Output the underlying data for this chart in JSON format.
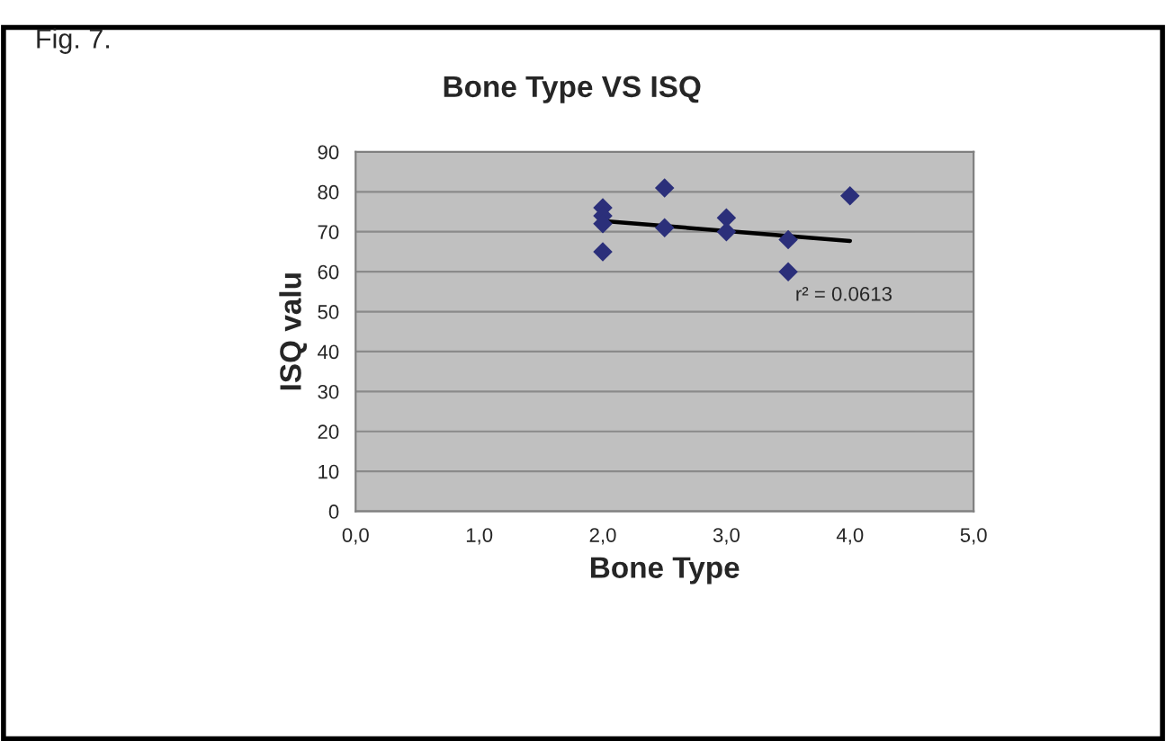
{
  "chart_data": {
    "type": "scatter",
    "title": "Bone Type VS ISQ",
    "xlabel": "Bone Type",
    "ylabel": "ISQ valu",
    "series": [
      {
        "color": "#2b2f7a",
        "marker": "diamond",
        "x": [
          2.0,
          2.0,
          2.0,
          2.0,
          2.5,
          2.5,
          3.0,
          3.0,
          3.5,
          3.5,
          4.0
        ],
        "values": [
          76,
          74,
          72,
          65,
          81,
          71,
          73.5,
          70,
          68,
          60,
          79
        ]
      },
      {
        "type": "line",
        "color": "#000000",
        "marker": "none",
        "x": [
          2.0,
          4.0
        ],
        "values": [
          72.7,
          67.7
        ]
      }
    ],
    "annotations": [
      "Fig. 7.",
      "r² = 0.0613"
    ],
    "xlim": [
      0,
      5
    ],
    "xticks": [
      {
        "value": 0,
        "label": "0,0"
      },
      {
        "value": 1,
        "label": "1,0"
      },
      {
        "value": 2,
        "label": "2,0"
      },
      {
        "value": 3,
        "label": "3,0"
      },
      {
        "value": 4,
        "label": "4,0"
      },
      {
        "value": 5,
        "label": "5,0"
      }
    ],
    "ylim": [
      0,
      90
    ],
    "yticks": [
      0,
      10,
      20,
      30,
      40,
      50,
      60,
      70,
      80,
      90
    ],
    "grid": "y",
    "legend": false
  }
}
